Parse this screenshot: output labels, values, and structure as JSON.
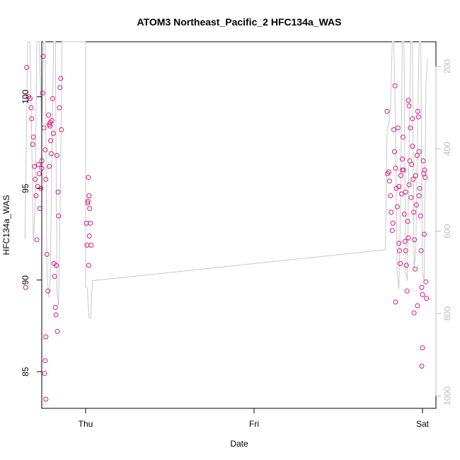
{
  "chart_data": {
    "type": "scatter",
    "title": "ATOM3 Northeast_Pacific_2 HFC134a_WAS",
    "xlabel": "Date",
    "ylabel": "HFC134a_WAS",
    "x_ticks": [
      "Thu",
      "Fri",
      "Sat"
    ],
    "ylim": [
      83,
      103
    ],
    "y_ticks": [
      85,
      90,
      95,
      100
    ],
    "secondary_axis": {
      "side": "right",
      "reversed": true,
      "ticks": [
        200,
        400,
        600,
        800,
        1000
      ],
      "range": [
        1030,
        140
      ]
    },
    "grid": false,
    "colors": {
      "points": "#e0177a",
      "altitude_line": "#c8c8c8",
      "secondary_axis": "#bdbdbd"
    },
    "series": [
      {
        "role": "points",
        "points": [
          [
            -0.175,
            101.6
          ],
          [
            -0.17,
            100.0
          ],
          [
            -0.165,
            99.9
          ],
          [
            -0.162,
            99.4
          ],
          [
            -0.16,
            98.8
          ],
          [
            -0.157,
            97.4
          ],
          [
            -0.155,
            97.8
          ],
          [
            -0.152,
            96.2
          ],
          [
            -0.15,
            95.5
          ],
          [
            -0.147,
            94.6
          ],
          [
            -0.145,
            92.2
          ],
          [
            -0.178,
            89.6
          ],
          [
            -0.14,
            96.3
          ],
          [
            -0.138,
            95.8
          ],
          [
            -0.136,
            93.9
          ],
          [
            -0.133,
            95.0
          ],
          [
            -0.13,
            96.5
          ],
          [
            -0.128,
            100.2
          ],
          [
            -0.126,
            102.2
          ],
          [
            -0.124,
            98.3
          ],
          [
            -0.12,
            97.1
          ],
          [
            -0.118,
            95.5
          ],
          [
            -0.115,
            91.4
          ],
          [
            -0.112,
            89.4
          ],
          [
            -0.118,
            86.9
          ],
          [
            -0.12,
            85.6
          ],
          [
            -0.122,
            84.9
          ],
          [
            -0.118,
            83.5
          ],
          [
            -0.11,
            99.0
          ],
          [
            -0.108,
            98.5
          ],
          [
            -0.106,
            98.4
          ],
          [
            -0.104,
            97.6
          ],
          [
            -0.102,
            96.9
          ],
          [
            -0.1,
            98.7
          ],
          [
            -0.098,
            99.9
          ],
          [
            -0.096,
            98.0
          ],
          [
            -0.094,
            90.9
          ],
          [
            -0.092,
            90.2
          ],
          [
            -0.09,
            88.5
          ],
          [
            -0.088,
            88.1
          ],
          [
            -0.085,
            96.8
          ],
          [
            -0.082,
            94.8
          ],
          [
            -0.08,
            93.5
          ],
          [
            -0.078,
            99.4
          ],
          [
            -0.076,
            100.5
          ],
          [
            -0.074,
            101.0
          ],
          [
            -0.072,
            98.2
          ],
          [
            -0.084,
            87.2
          ],
          [
            -0.087,
            90.8
          ],
          [
            -0.108,
            96.2
          ],
          [
            -0.105,
            98.6
          ],
          [
            -0.13,
            96.1
          ],
          [
            -0.142,
            95.1
          ],
          [
            0.002,
            93.1
          ],
          [
            0.004,
            91.9
          ],
          [
            0.006,
            94.2
          ],
          [
            0.008,
            95.6
          ],
          [
            0.01,
            94.6
          ],
          [
            0.012,
            93.9
          ],
          [
            0.014,
            93.1
          ],
          [
            0.016,
            91.9
          ],
          [
            0.009,
            90.8
          ],
          [
            0.007,
            94.3
          ],
          [
            0.011,
            92.4
          ],
          [
            0.895,
            99.2
          ],
          [
            0.9,
            95.9
          ],
          [
            0.902,
            95.4
          ],
          [
            0.905,
            94.6
          ],
          [
            0.907,
            93.7
          ],
          [
            0.91,
            92.7
          ],
          [
            0.912,
            93.1
          ],
          [
            0.915,
            98.2
          ],
          [
            0.917,
            97.0
          ],
          [
            0.92,
            96.1
          ],
          [
            0.922,
            95.0
          ],
          [
            0.925,
            94.0
          ],
          [
            0.927,
            98.3
          ],
          [
            0.93,
            92.0
          ],
          [
            0.932,
            91.6
          ],
          [
            0.934,
            90.9
          ],
          [
            0.936,
            95.7
          ],
          [
            0.938,
            94.7
          ],
          [
            0.94,
            96.0
          ],
          [
            0.942,
            97.8
          ],
          [
            0.944,
            96.0
          ],
          [
            0.946,
            93.6
          ],
          [
            0.948,
            92.1
          ],
          [
            0.95,
            91.6
          ],
          [
            0.952,
            90.8
          ],
          [
            0.954,
            89.4
          ],
          [
            0.956,
            93.2
          ],
          [
            0.958,
            92.3
          ],
          [
            0.96,
            95.2
          ],
          [
            0.962,
            96.5
          ],
          [
            0.964,
            98.3
          ],
          [
            0.966,
            94.5
          ],
          [
            0.968,
            96.3
          ],
          [
            0.97,
            97.3
          ],
          [
            0.972,
            95.5
          ],
          [
            0.974,
            93.7
          ],
          [
            0.976,
            92.2
          ],
          [
            0.978,
            90.6
          ],
          [
            0.98,
            95.7
          ],
          [
            0.982,
            94.1
          ],
          [
            0.984,
            96.8
          ],
          [
            0.986,
            99.2
          ],
          [
            0.988,
            98.9
          ],
          [
            0.99,
            97.0
          ],
          [
            0.992,
            95.0
          ],
          [
            0.994,
            93.5
          ],
          [
            0.996,
            91.6
          ],
          [
            0.998,
            89.6
          ],
          [
            1.0,
            89.2
          ],
          [
            1.002,
            96.5
          ],
          [
            1.004,
            95.8
          ],
          [
            1.006,
            96.0
          ],
          [
            1.008,
            95.6
          ],
          [
            1.01,
            89.9
          ],
          [
            1.012,
            89.0
          ],
          [
            0.985,
            88.6
          ],
          [
            1.0,
            86.3
          ],
          [
            0.998,
            85.3
          ],
          [
            0.975,
            88.2
          ],
          [
            0.92,
            88.8
          ],
          [
            0.918,
            100.6
          ],
          [
            0.958,
            99.8
          ],
          [
            0.96,
            99.5
          ],
          [
            0.97,
            98.8
          ],
          [
            0.99,
            94.6
          ],
          [
            1.005,
            92.5
          ],
          [
            0.93,
            95.1
          ],
          [
            0.95,
            94.8
          ],
          [
            0.94,
            96.6
          ],
          [
            0.896,
            95.8
          ]
        ]
      },
      {
        "role": "altitude-profile",
        "axis": "secondary",
        "points": [
          [
            -0.18,
            620
          ],
          [
            -0.172,
            140
          ],
          [
            -0.165,
            140
          ],
          [
            -0.155,
            630
          ],
          [
            -0.15,
            540
          ],
          [
            -0.145,
            140
          ],
          [
            -0.138,
            140
          ],
          [
            -0.13,
            360
          ],
          [
            -0.125,
            140
          ],
          [
            -0.12,
            140
          ],
          [
            -0.115,
            700
          ],
          [
            -0.11,
            760
          ],
          [
            -0.105,
            720
          ],
          [
            -0.1,
            400
          ],
          [
            -0.095,
            140
          ],
          [
            -0.09,
            140
          ],
          [
            -0.085,
            750
          ],
          [
            -0.08,
            780
          ],
          [
            -0.075,
            500
          ],
          [
            -0.07,
            140
          ],
          [
            -0.06,
            140
          ],
          [
            0.0,
            140
          ],
          [
            0.0,
            735
          ],
          [
            0.005,
            740
          ],
          [
            0.01,
            810
          ],
          [
            0.015,
            810
          ],
          [
            0.02,
            720
          ],
          [
            0.89,
            645
          ],
          [
            0.895,
            350
          ],
          [
            0.9,
            340
          ],
          [
            0.905,
            300
          ],
          [
            0.91,
            140
          ],
          [
            0.915,
            140
          ],
          [
            0.92,
            350
          ],
          [
            0.925,
            700
          ],
          [
            0.93,
            740
          ],
          [
            0.935,
            520
          ],
          [
            0.94,
            140
          ],
          [
            0.945,
            140
          ],
          [
            0.95,
            700
          ],
          [
            0.955,
            720
          ],
          [
            0.96,
            400
          ],
          [
            0.965,
            140
          ],
          [
            0.97,
            140
          ],
          [
            0.975,
            690
          ],
          [
            0.98,
            650
          ],
          [
            0.985,
            380
          ],
          [
            0.99,
            140
          ],
          [
            0.995,
            140
          ],
          [
            1.0,
            700
          ],
          [
            1.005,
            720
          ],
          [
            1.01,
            250
          ],
          [
            1.015,
            180
          ]
        ]
      }
    ]
  }
}
